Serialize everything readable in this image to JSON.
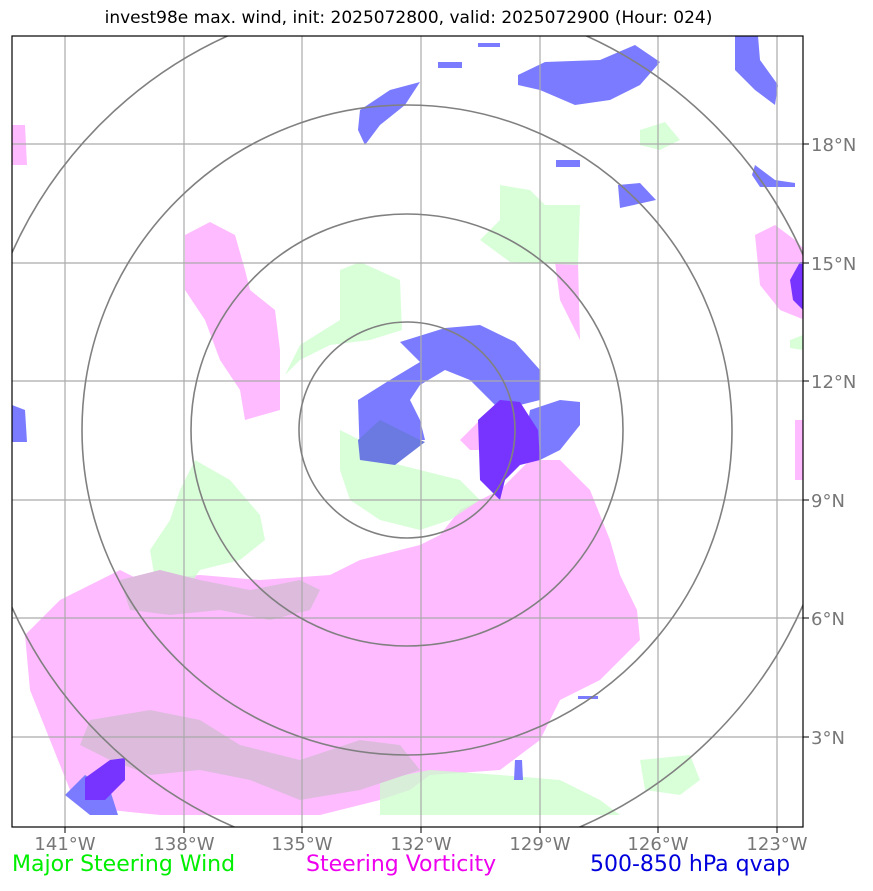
{
  "title": "invest98e max. wind, init: 2025072800, valid: 2025072900 (Hour: 024)",
  "map": {
    "projection": "lat-lon",
    "lon_ticks": [
      "141°W",
      "138°W",
      "135°W",
      "132°W",
      "129°W",
      "126°W",
      "123°W"
    ],
    "lat_ticks": [
      "18°N",
      "15°N",
      "12°N",
      "9°N",
      "6°N",
      "3°N"
    ],
    "grid": true,
    "range_rings": 4,
    "colors": {
      "steering_wind": "#00ff00",
      "steering_vorticity": "#ff00ff",
      "qvap": "#0000dd",
      "grid": "#aaaaaa",
      "rings": "#808080"
    }
  },
  "legend": {
    "wind": "Major Steering Wind",
    "vorticity": "Steering Vorticity",
    "qvap": "500-850 hPa qvap"
  }
}
